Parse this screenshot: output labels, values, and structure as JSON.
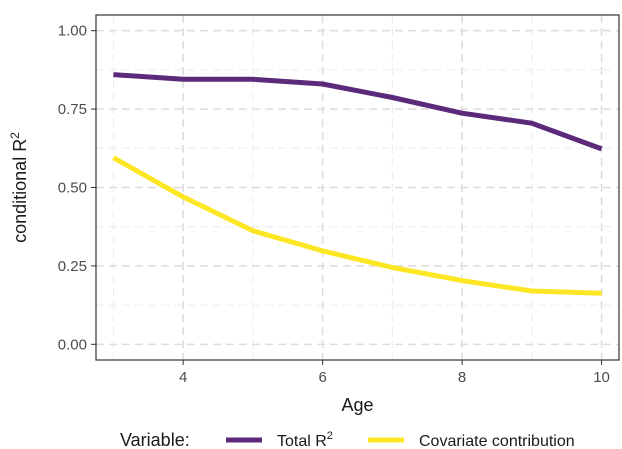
{
  "chart_data": {
    "type": "line",
    "xlabel": "Age",
    "ylabel_base": "conditional R",
    "ylabel_sup": "2",
    "xlim": [
      2.75,
      10.25
    ],
    "ylim": [
      -0.05,
      1.05
    ],
    "x_ticks": [
      4,
      6,
      8,
      10
    ],
    "x_tick_labels": [
      "4",
      "6",
      "8",
      "10"
    ],
    "y_ticks": [
      0,
      0.25,
      0.5,
      0.75,
      1.0
    ],
    "y_tick_labels": [
      "0.00",
      "0.25",
      "0.50",
      "0.75",
      "1.00"
    ],
    "grid": true,
    "grid_style": "dashed",
    "legend_position": "bottom",
    "legend_title": "Variable:",
    "x": [
      3,
      4,
      5,
      6,
      7,
      8,
      9,
      10
    ],
    "series": [
      {
        "name_base": "Total R",
        "name_sup": "2",
        "color": "#5b2a7a",
        "values": [
          0.86,
          0.845,
          0.845,
          0.83,
          0.787,
          0.737,
          0.705,
          0.623
        ]
      },
      {
        "name": "Covariate contribution",
        "color": "#fde725",
        "values": [
          0.595,
          0.47,
          0.362,
          0.298,
          0.245,
          0.203,
          0.17,
          0.163
        ]
      }
    ]
  }
}
